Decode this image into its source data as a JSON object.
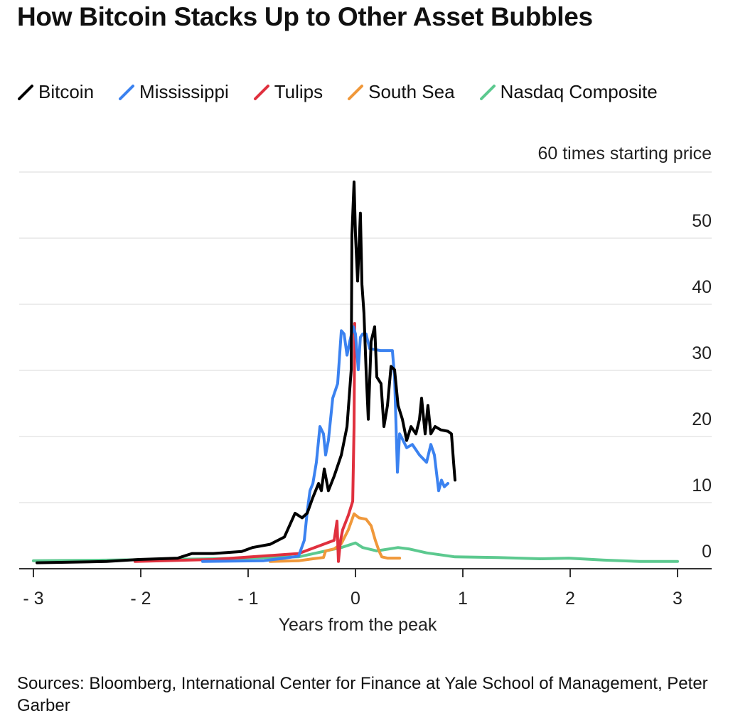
{
  "title": "How Bitcoin Stacks Up to Other Asset Bubbles",
  "source": "Sources: Bloomberg, International Center for Finance at Yale School of Management, Peter Garber",
  "chart_data": {
    "type": "line",
    "title": "How Bitcoin Stacks Up to Other Asset Bubbles",
    "xlabel": "Years from the peak",
    "ylabel": "times starting price",
    "y_top_label": "60 times starting price",
    "xlim": [
      -3,
      3
    ],
    "ylim": [
      0,
      60
    ],
    "xticks": [
      "-3",
      "-2",
      "-1",
      "0",
      "1",
      "2",
      "3"
    ],
    "yticks": [
      "0",
      "10",
      "20",
      "30",
      "40",
      "50"
    ],
    "grid": "horizontal",
    "legend_placement": "top-left",
    "series": [
      {
        "name": "Bitcoin",
        "color": "#000000",
        "points": [
          [
            -2.967,
            0.9
          ],
          [
            -2.649,
            1.0
          ],
          [
            -2.318,
            1.1
          ],
          [
            -2.02,
            1.4
          ],
          [
            -1.656,
            1.6
          ],
          [
            -1.523,
            2.3
          ],
          [
            -1.325,
            2.3
          ],
          [
            -1.06,
            2.6
          ],
          [
            -0.96,
            3.2
          ],
          [
            -0.795,
            3.7
          ],
          [
            -0.662,
            4.8
          ],
          [
            -0.563,
            8.4
          ],
          [
            -0.497,
            7.7
          ],
          [
            -0.45,
            8.4
          ],
          [
            -0.397,
            10.8
          ],
          [
            -0.344,
            12.9
          ],
          [
            -0.318,
            11.8
          ],
          [
            -0.291,
            15.1
          ],
          [
            -0.252,
            11.8
          ],
          [
            -0.199,
            14.0
          ],
          [
            -0.132,
            17.2
          ],
          [
            -0.079,
            21.5
          ],
          [
            -0.04,
            30.1
          ],
          [
            -0.033,
            50.5
          ],
          [
            -0.013,
            58.5
          ],
          [
            0,
            50.5
          ],
          [
            0.02,
            43.5
          ],
          [
            0.046,
            53.8
          ],
          [
            0.06,
            43.0
          ],
          [
            0.079,
            38.7
          ],
          [
            0.099,
            30.1
          ],
          [
            0.119,
            22.6
          ],
          [
            0.146,
            34.4
          ],
          [
            0.179,
            36.6
          ],
          [
            0.199,
            29.0
          ],
          [
            0.238,
            28.0
          ],
          [
            0.265,
            21.5
          ],
          [
            0.298,
            24.7
          ],
          [
            0.331,
            30.6
          ],
          [
            0.364,
            30.1
          ],
          [
            0.397,
            24.7
          ],
          [
            0.437,
            22.6
          ],
          [
            0.477,
            19.4
          ],
          [
            0.517,
            21.5
          ],
          [
            0.563,
            20.4
          ],
          [
            0.596,
            22.6
          ],
          [
            0.616,
            25.8
          ],
          [
            0.649,
            20.4
          ],
          [
            0.675,
            24.7
          ],
          [
            0.702,
            20.4
          ],
          [
            0.742,
            21.5
          ],
          [
            0.795,
            21.0
          ],
          [
            0.861,
            20.8
          ],
          [
            0.894,
            20.4
          ],
          [
            0.914,
            16.1
          ],
          [
            0.927,
            13.4
          ]
        ]
      },
      {
        "name": "Mississippi",
        "color": "#3b82f0",
        "points": [
          [
            -1.424,
            1.1
          ],
          [
            -0.861,
            1.2
          ],
          [
            -0.662,
            1.6
          ],
          [
            -0.53,
            1.9
          ],
          [
            -0.477,
            4.3
          ],
          [
            -0.45,
            8.6
          ],
          [
            -0.424,
            11.8
          ],
          [
            -0.397,
            12.9
          ],
          [
            -0.364,
            16.1
          ],
          [
            -0.331,
            21.5
          ],
          [
            -0.298,
            20.4
          ],
          [
            -0.278,
            17.2
          ],
          [
            -0.252,
            19.4
          ],
          [
            -0.212,
            25.8
          ],
          [
            -0.166,
            28.0
          ],
          [
            -0.132,
            36.0
          ],
          [
            -0.106,
            35.5
          ],
          [
            -0.079,
            32.3
          ],
          [
            -0.053,
            34.4
          ],
          [
            -0.02,
            36.6
          ],
          [
            0,
            35.5
          ],
          [
            0.026,
            30.1
          ],
          [
            0.046,
            35.0
          ],
          [
            0.066,
            35.5
          ],
          [
            0.099,
            35.5
          ],
          [
            0.132,
            33.3
          ],
          [
            0.232,
            33.0
          ],
          [
            0.344,
            33.0
          ],
          [
            0.364,
            29.0
          ],
          [
            0.391,
            14.6
          ],
          [
            0.411,
            20.4
          ],
          [
            0.444,
            19.4
          ],
          [
            0.477,
            18.3
          ],
          [
            0.53,
            18.8
          ],
          [
            0.596,
            17.2
          ],
          [
            0.662,
            16.1
          ],
          [
            0.702,
            18.8
          ],
          [
            0.735,
            17.2
          ],
          [
            0.775,
            11.8
          ],
          [
            0.801,
            13.4
          ],
          [
            0.828,
            12.4
          ],
          [
            0.861,
            12.9
          ]
        ]
      },
      {
        "name": "Tulips",
        "color": "#e0303e",
        "points": [
          [
            -2.053,
            1.1
          ],
          [
            -1.325,
            1.4
          ],
          [
            -0.53,
            2.3
          ],
          [
            -0.199,
            4.3
          ],
          [
            -0.172,
            7.2
          ],
          [
            -0.159,
            1.1
          ],
          [
            -0.139,
            4.3
          ],
          [
            -0.119,
            5.9
          ],
          [
            -0.066,
            8.1
          ],
          [
            -0.026,
            10.2
          ],
          [
            -0.013,
            21.5
          ],
          [
            -0.007,
            37.1
          ]
        ]
      },
      {
        "name": "South Sea",
        "color": "#f0983a",
        "points": [
          [
            -0.795,
            1.1
          ],
          [
            -0.53,
            1.2
          ],
          [
            -0.397,
            1.5
          ],
          [
            -0.298,
            1.7
          ],
          [
            -0.278,
            2.7
          ],
          [
            -0.199,
            3.0
          ],
          [
            -0.132,
            3.8
          ],
          [
            -0.066,
            5.9
          ],
          [
            -0.013,
            8.3
          ],
          [
            0.033,
            7.7
          ],
          [
            0.099,
            7.5
          ],
          [
            0.146,
            6.5
          ],
          [
            0.185,
            4.3
          ],
          [
            0.219,
            2.7
          ],
          [
            0.245,
            1.8
          ],
          [
            0.298,
            1.6
          ],
          [
            0.411,
            1.6
          ]
        ]
      },
      {
        "name": "Nasdaq Composite",
        "color": "#5cc98f",
        "points": [
          [
            -3.0,
            1.2
          ],
          [
            -2.318,
            1.3
          ],
          [
            -1.325,
            1.5
          ],
          [
            -0.53,
            1.8
          ],
          [
            -0.132,
            3.2
          ],
          [
            0,
            3.9
          ],
          [
            0.066,
            3.2
          ],
          [
            0.199,
            2.7
          ],
          [
            0.397,
            3.2
          ],
          [
            0.497,
            3.0
          ],
          [
            0.662,
            2.4
          ],
          [
            0.927,
            1.8
          ],
          [
            1.325,
            1.7
          ],
          [
            1.722,
            1.5
          ],
          [
            1.987,
            1.6
          ],
          [
            2.318,
            1.3
          ],
          [
            2.649,
            1.1
          ],
          [
            3.0,
            1.1
          ]
        ]
      }
    ]
  }
}
